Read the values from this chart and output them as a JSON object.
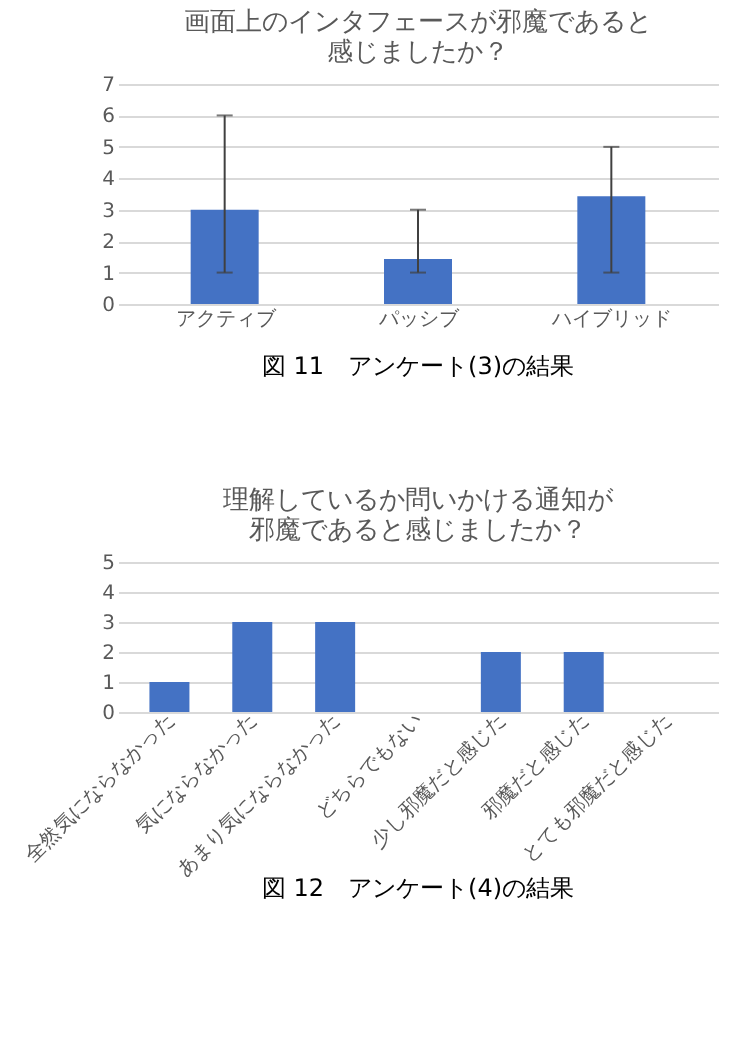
{
  "chart_data": [
    {
      "type": "bar",
      "title": "画面上のインタフェースが邪魔であると感じましたか？",
      "categories": [
        "アクティブ",
        "パッシブ",
        "ハイブリッド"
      ],
      "values": [
        3,
        1.43,
        3.43
      ],
      "errors": [
        [
          1,
          6
        ],
        [
          1,
          3
        ],
        [
          1,
          5
        ]
      ],
      "color": "#4472c4",
      "ylim": [
        0,
        7
      ],
      "yticks": [
        0,
        1,
        2,
        3,
        4,
        5,
        6,
        7
      ],
      "grid": "y",
      "legend": false,
      "annotations": [
        "図 11　アンケート(3)の結果"
      ]
    },
    {
      "type": "bar",
      "title": "理解しているか問いかける通知が邪魔であると感じましたか？",
      "categories": [
        "全然気にならなかった",
        "気にならなかった",
        "あまり気にならなかった",
        "どちらでもない",
        "少し邪魔だと感じた",
        "邪魔だと感じた",
        "とても邪魔だと感じた"
      ],
      "values": [
        1,
        3,
        3,
        0,
        2,
        2,
        0
      ],
      "color": "#4472c4",
      "ylim": [
        0,
        5
      ],
      "yticks": [
        0,
        1,
        2,
        3,
        4,
        5
      ],
      "grid": "y",
      "legend": false,
      "annotations": [
        "図 12　アンケート(4)の結果"
      ]
    }
  ]
}
